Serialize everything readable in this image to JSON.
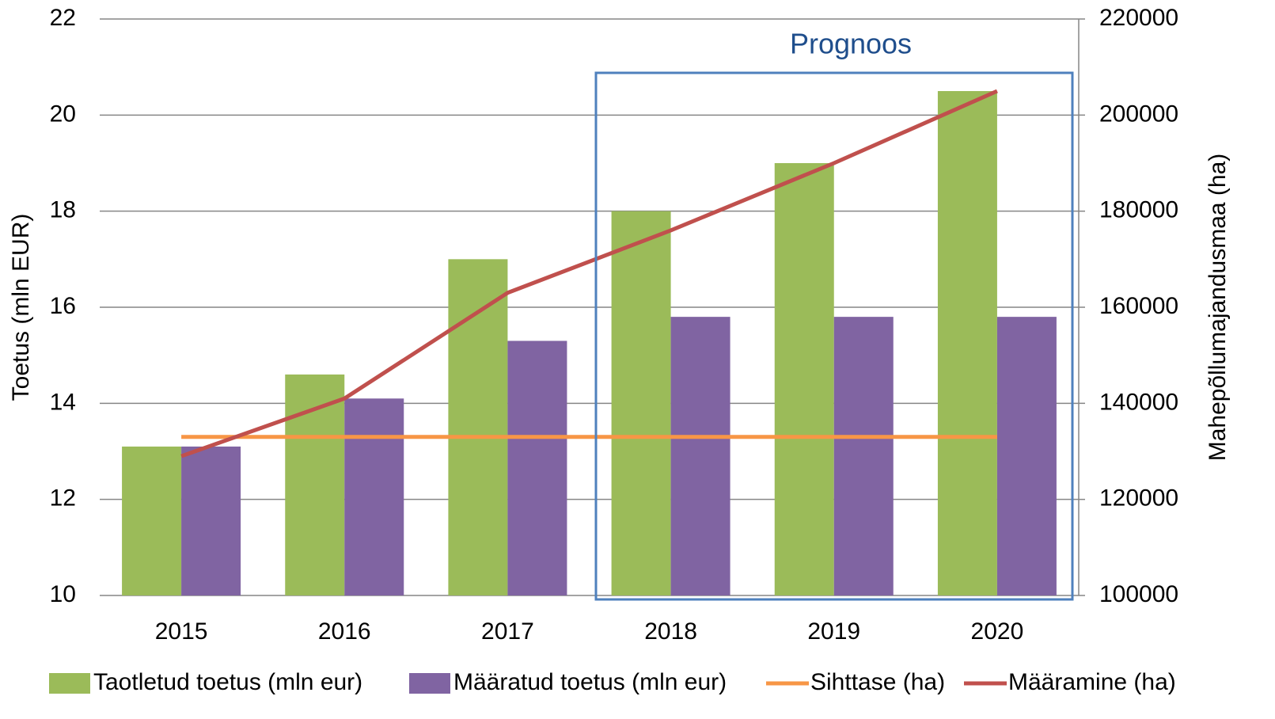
{
  "chart_data": {
    "type": "bar",
    "annotation": "Prognoos",
    "ylabel": "Toetus (mln EUR)",
    "y2label": "Mahepõllumajandusmaa (ha)",
    "categories": [
      "2015",
      "2016",
      "2017",
      "2018",
      "2019",
      "2020"
    ],
    "series": [
      {
        "name": "Taotletud toetus (mln eur)",
        "type": "bar",
        "color": "#9bbb59",
        "values": [
          13.1,
          14.6,
          17,
          18,
          19,
          20.5
        ]
      },
      {
        "name": "Määratud toetus (mln eur)",
        "type": "bar",
        "color": "#8064a2",
        "values": [
          13.1,
          14.1,
          15.3,
          15.8,
          15.8,
          15.8
        ]
      },
      {
        "name": "Sihttase (ha)",
        "type": "line",
        "axis": "y2",
        "color": "#f79646",
        "values": [
          133000,
          133000,
          133000,
          133000,
          133000,
          133000
        ]
      },
      {
        "name": "Määramine (ha)",
        "type": "line",
        "axis": "y2",
        "color": "#c0504d",
        "values": [
          129000,
          141000,
          163000,
          176000,
          190000,
          205000
        ]
      }
    ],
    "ylim": [
      10,
      22
    ],
    "yticks": [
      10,
      12,
      14,
      16,
      18,
      20,
      22
    ],
    "y2lim": [
      100000,
      220000
    ],
    "y2ticks": [
      100000,
      120000,
      140000,
      160000,
      180000,
      200000,
      220000
    ],
    "grid": true,
    "legend": "bottom"
  }
}
